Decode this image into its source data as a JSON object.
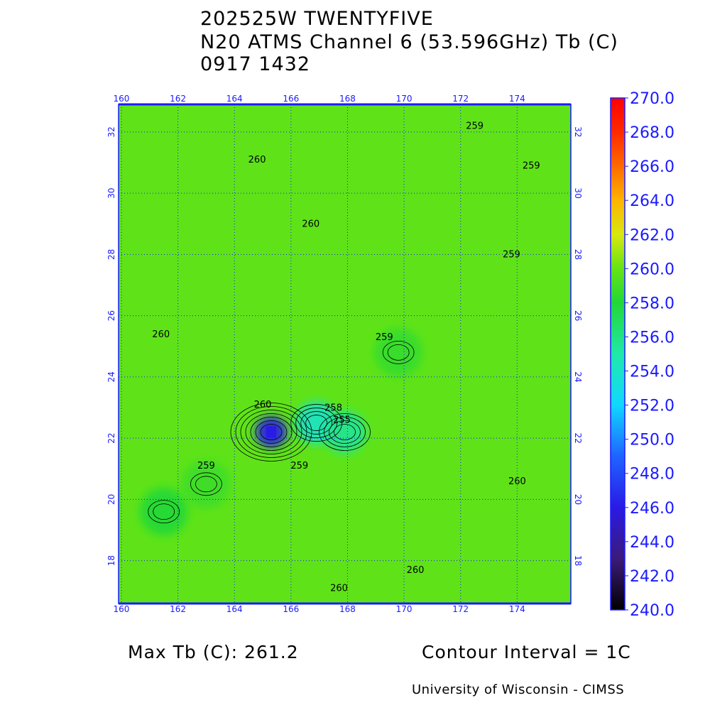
{
  "header": {
    "storm": "202525W TWENTYFIVE",
    "product": "N20 ATMS Channel 6 (53.596GHz) Tb (C)",
    "datetime": "0917 1432"
  },
  "footer": {
    "max_tb": "Max Tb (C): 261.2",
    "contour_interval": "Contour Interval = 1C",
    "credit": "University of Wisconsin - CIMSS"
  },
  "chart_data": {
    "type": "heatmap",
    "title": "N20 ATMS Channel 6 (53.596GHz) Tb (C)",
    "x_ticks": [
      "160",
      "162",
      "164",
      "166",
      "168",
      "170",
      "172",
      "174"
    ],
    "y_ticks": [
      "18",
      "20",
      "22",
      "24",
      "26",
      "28",
      "30",
      "32"
    ],
    "xlim": [
      159.9,
      175.9
    ],
    "ylim": [
      16.6,
      32.9
    ],
    "colorbar": {
      "ticks": [
        "270.0",
        "268.0",
        "266.0",
        "264.0",
        "262.0",
        "260.0",
        "258.0",
        "256.0",
        "254.0",
        "252.0",
        "250.0",
        "248.0",
        "246.0",
        "244.0",
        "242.0",
        "240.0"
      ],
      "range": [
        240,
        270
      ],
      "stops": [
        {
          "v": 240,
          "c": "#000000"
        },
        {
          "v": 243,
          "c": "#3c1a7a"
        },
        {
          "v": 246,
          "c": "#2a1ae6"
        },
        {
          "v": 249,
          "c": "#1e64ff"
        },
        {
          "v": 252,
          "c": "#10d8ff"
        },
        {
          "v": 255,
          "c": "#20e8a8"
        },
        {
          "v": 258,
          "c": "#22d838"
        },
        {
          "v": 260,
          "c": "#66e414"
        },
        {
          "v": 262,
          "c": "#d8e810"
        },
        {
          "v": 264,
          "c": "#ffb400"
        },
        {
          "v": 266,
          "c": "#ff6a00"
        },
        {
          "v": 268,
          "c": "#ff2a00"
        },
        {
          "v": 270,
          "c": "#ff0000"
        }
      ]
    },
    "background_tb": 259.8,
    "features": [
      {
        "lon": 165.3,
        "lat": 22.2,
        "tb": 246.0
      },
      {
        "lon": 166.9,
        "lat": 22.5,
        "tb": 254.0
      },
      {
        "lon": 167.9,
        "lat": 22.2,
        "tb": 255.5
      },
      {
        "lon": 161.5,
        "lat": 19.6,
        "tb": 258.0
      },
      {
        "lon": 169.8,
        "lat": 24.8,
        "tb": 258.6
      },
      {
        "lon": 163.0,
        "lat": 20.5,
        "tb": 258.8
      }
    ],
    "contour_labels": [
      {
        "text": "260",
        "lon": 164.8,
        "lat": 31.0
      },
      {
        "text": "259",
        "lon": 172.5,
        "lat": 32.1
      },
      {
        "text": "259",
        "lon": 174.5,
        "lat": 30.8
      },
      {
        "text": "260",
        "lon": 166.7,
        "lat": 28.9
      },
      {
        "text": "259",
        "lon": 173.8,
        "lat": 27.9
      },
      {
        "text": "260",
        "lon": 161.4,
        "lat": 25.3
      },
      {
        "text": "259",
        "lon": 169.3,
        "lat": 25.2
      },
      {
        "text": "260",
        "lon": 165.0,
        "lat": 23.0
      },
      {
        "text": "258",
        "lon": 167.5,
        "lat": 22.9
      },
      {
        "text": "255",
        "lon": 167.8,
        "lat": 22.5
      },
      {
        "text": "259",
        "lon": 163.0,
        "lat": 21.0
      },
      {
        "text": "259",
        "lon": 166.3,
        "lat": 21.0
      },
      {
        "text": "260",
        "lon": 174.0,
        "lat": 20.5
      },
      {
        "text": "260",
        "lon": 170.4,
        "lat": 17.6
      },
      {
        "text": "260",
        "lon": 167.7,
        "lat": 17.0
      }
    ]
  }
}
